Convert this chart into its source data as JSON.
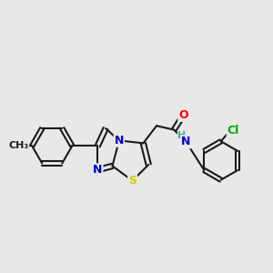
{
  "bg_color": "#e8e8e8",
  "bond_color": "#1a1a1a",
  "bond_width": 1.5,
  "atom_colors": {
    "N": "#0000cc",
    "S": "#cccc00",
    "O": "#ff0000",
    "Cl": "#00aa00",
    "H": "#44aaaa",
    "C": "#1a1a1a"
  },
  "font_size_atom": 9,
  "font_size_small": 8,
  "font_size_cl": 8
}
